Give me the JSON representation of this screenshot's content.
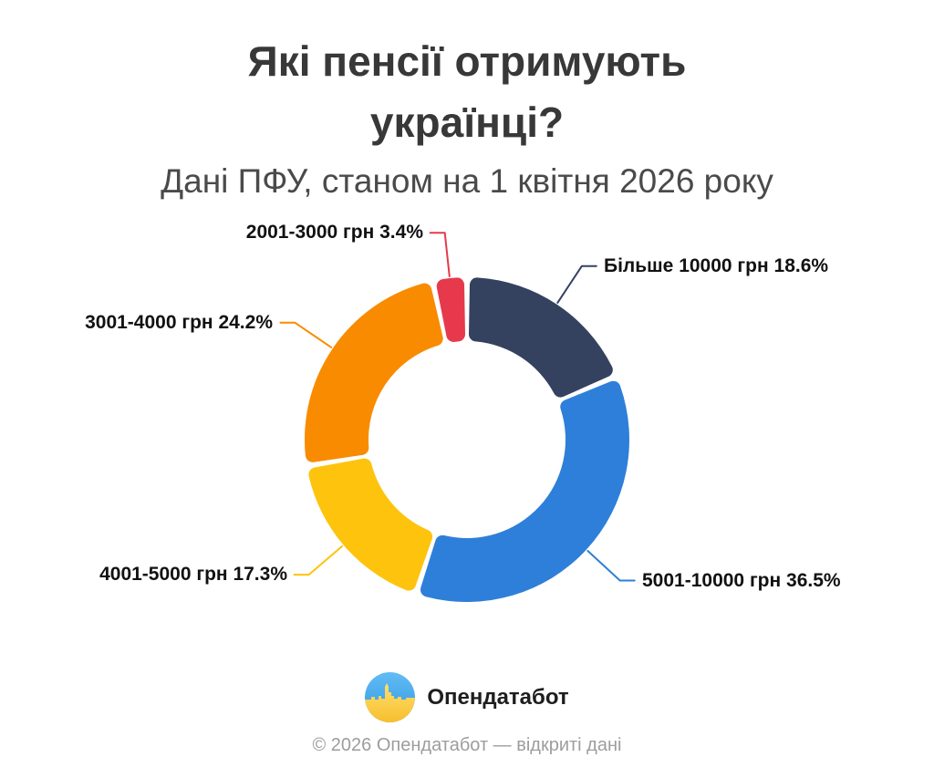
{
  "chart_data": {
    "type": "pie",
    "subtype": "donut",
    "title": "Які пенсії отримують українці?",
    "subtitle": "Дані ПФУ, станом на 1 квітня 2026 року",
    "unit": "percent",
    "start_angle": "top",
    "direction": "clockwise",
    "inner_radius_ratio": 0.61,
    "labels": "outside-with-leader-lines",
    "legend": "none",
    "segments": [
      {
        "label": "Більше 10000 грн",
        "value": 18.6,
        "display": "Більше 10000 грн 18.6%",
        "color": "#344260"
      },
      {
        "label": "5001-10000 грн",
        "value": 36.5,
        "display": "5001-10000 грн 36.5%",
        "color": "#2E7FD9"
      },
      {
        "label": "4001-5000 грн",
        "value": 17.3,
        "display": "4001-5000 грн 17.3%",
        "color": "#FEC30D"
      },
      {
        "label": "3001-4000 грн",
        "value": 24.2,
        "display": "3001-4000 грн 24.2%",
        "color": "#F98B00"
      },
      {
        "label": "2001-3000 грн",
        "value": 3.4,
        "display": "2001-3000 грн 3.4%",
        "color": "#E6394B"
      }
    ]
  },
  "logo": {
    "brand": "Опендатабот",
    "colors": {
      "blue_top": "#63BCF4",
      "blue_bottom": "#2F97E0",
      "yellow_top": "#FFE070",
      "yellow_bottom": "#F7BE2D"
    }
  },
  "footer": "© 2026 Опендатабот — відкриті дані"
}
